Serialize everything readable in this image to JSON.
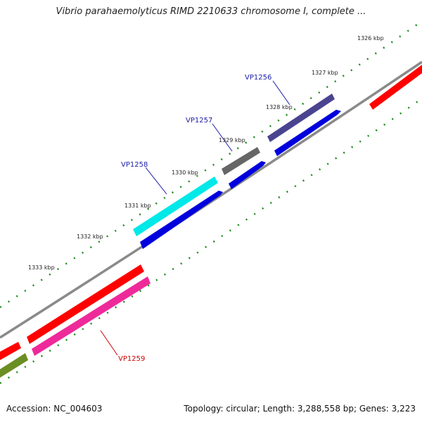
{
  "title": "Vibrio parahaemolyticus RIMD 2210633 chromosome I, complete ...",
  "footer": {
    "accession": "Accession: NC_004603",
    "summary": "Topology: circular; Length: 3,288,558 bp; Genes: 3,223"
  },
  "kbp_labels": [
    "1326 kbp",
    "1327 kbp",
    "1328 kbp",
    "1329 kbp",
    "1330 kbp",
    "1331 kbp",
    "1332 kbp",
    "1333 kbp"
  ],
  "gene_labels": [
    {
      "name": "VP1256",
      "color": "#1a1aa8"
    },
    {
      "name": "VP1257",
      "color": "#1a1aa8"
    },
    {
      "name": "VP1258",
      "color": "#1a1aa8"
    },
    {
      "name": "VP1259",
      "color": "#cc0000"
    }
  ],
  "colors": {
    "backbone": "#8a8a8a",
    "ticks": "#1e8a1e",
    "cds_forward": "#0000dd",
    "gene_red": "#ff0000",
    "gene_magenta": "#ee2a9a",
    "gene_cyan": "#00e8e8",
    "gene_gray": "#666666",
    "gene_slate": "#4a4490",
    "gene_olive": "#6b8e23"
  }
}
